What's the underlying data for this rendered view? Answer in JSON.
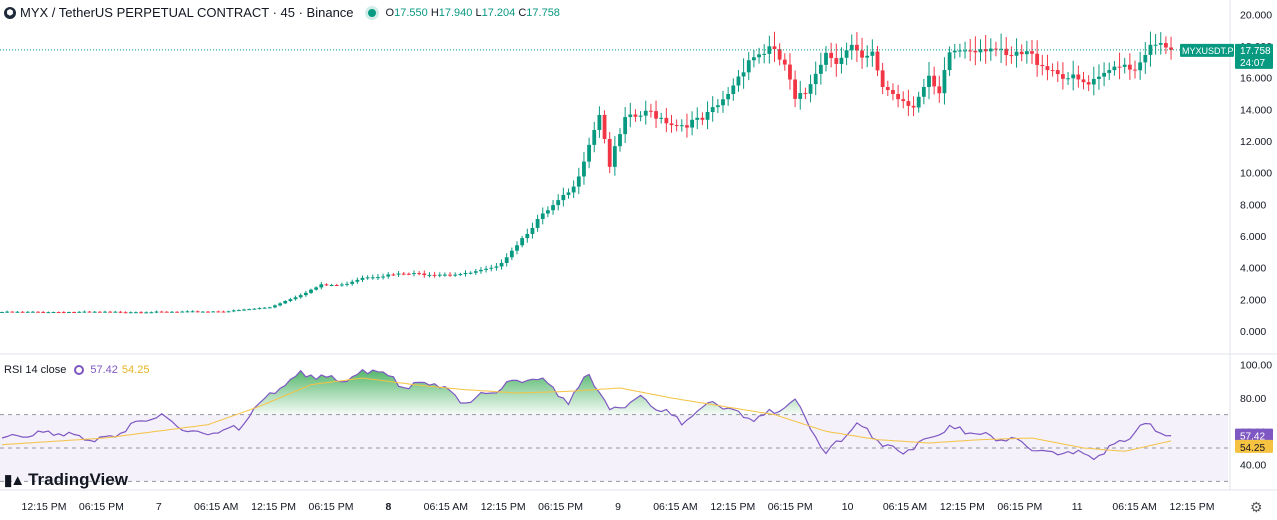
{
  "header": {
    "symbol_title": "MYX / TetherUS PERPETUAL CONTRACT · 45 · Binance",
    "ohlc": {
      "o_label": "O",
      "o": "17.550",
      "h_label": "H",
      "h": "17.940",
      "l_label": "L",
      "l": "17.204",
      "c_label": "C",
      "c": "17.758"
    }
  },
  "price_tag": {
    "symbol": "MYXUSDT.P",
    "price": "17.758",
    "countdown": "24:07"
  },
  "rsi": {
    "label": "RSI 14 close",
    "value": "57.42",
    "ma_value": "54.25"
  },
  "brand": {
    "name": "TradingView"
  },
  "colors": {
    "up": "#089981",
    "down": "#f23645",
    "rsi_line": "#7e57c2",
    "rsi_ma": "#f5c242",
    "rsi_band": "#ede7f6"
  },
  "chart_data": [
    {
      "type": "candlestick",
      "title": "",
      "ylim": [
        -1.2,
        20.4
      ],
      "yticks": [
        0,
        2,
        4,
        6,
        8,
        10,
        12,
        14,
        16,
        18,
        20
      ],
      "ytick_labels": [
        "0.000",
        "2.000",
        "4.000",
        "6.000",
        "8.000",
        "10.000",
        "12.000",
        "14.000",
        "16.000",
        "18.000",
        "20.000"
      ],
      "xticks": [
        "12:15 PM",
        "06:15 PM",
        "7",
        "06:15 AM",
        "12:15 PM",
        "06:15 PM",
        "8",
        "06:15 AM",
        "12:15 PM",
        "06:15 PM",
        "9",
        "06:15 AM",
        "12:15 PM",
        "06:15 PM",
        "10",
        "06:15 AM",
        "12:15 PM",
        "06:15 PM",
        "11",
        "06:15 AM",
        "12:15 PM"
      ],
      "xtick_bold": [
        "8"
      ],
      "last_price": 17.758,
      "anchors": [
        [
          0,
          1.2
        ],
        [
          32,
          1.2
        ],
        [
          44,
          1.25
        ],
        [
          52,
          1.5
        ],
        [
          58,
          2.3
        ],
        [
          62,
          2.9
        ],
        [
          66,
          2.9
        ],
        [
          70,
          3.4
        ],
        [
          78,
          3.6
        ],
        [
          84,
          3.6
        ],
        [
          90,
          3.6
        ],
        [
          96,
          4.0
        ],
        [
          104,
          7.0
        ],
        [
          111,
          9.0
        ],
        [
          116,
          13.8
        ],
        [
          118,
          10.5
        ],
        [
          121,
          13.3
        ],
        [
          126,
          13.8
        ],
        [
          131,
          13.0
        ],
        [
          136,
          13.3
        ],
        [
          140,
          14.5
        ],
        [
          145,
          17.2
        ],
        [
          149,
          17.8
        ],
        [
          152,
          16.8
        ],
        [
          154,
          14.5
        ],
        [
          156,
          15.0
        ],
        [
          158,
          16.5
        ],
        [
          160,
          17.6
        ],
        [
          162,
          17.2
        ],
        [
          165,
          17.9
        ],
        [
          167,
          17.0
        ],
        [
          169,
          17.4
        ],
        [
          171,
          15.5
        ],
        [
          174,
          14.8
        ],
        [
          177,
          14.3
        ],
        [
          180,
          15.8
        ],
        [
          182,
          14.8
        ],
        [
          184,
          17.6
        ],
        [
          188,
          17.9
        ],
        [
          192,
          18.0
        ],
        [
          195,
          17.2
        ],
        [
          199,
          17.5
        ],
        [
          203,
          16.7
        ],
        [
          207,
          16.0
        ],
        [
          211,
          15.5
        ],
        [
          213,
          15.8
        ],
        [
          217,
          17.0
        ],
        [
          220,
          16.6
        ],
        [
          222,
          17.7
        ],
        [
          225,
          18.0
        ],
        [
          227,
          17.76
        ]
      ]
    },
    {
      "type": "line",
      "title": "RSI 14 close",
      "ylim": [
        26,
        104
      ],
      "yticks": [
        40,
        60,
        80,
        100
      ],
      "ytick_labels": [
        "40.00",
        "60.00",
        "80.00",
        "100.00"
      ],
      "bands": [
        30,
        50,
        70
      ],
      "series": [
        {
          "name": "RSI",
          "anchors": [
            [
              0,
              56
            ],
            [
              10,
              59
            ],
            [
              20,
              55
            ],
            [
              30,
              70
            ],
            [
              38,
              58
            ],
            [
              46,
              62
            ],
            [
              52,
              82
            ],
            [
              58,
              95
            ],
            [
              66,
              90
            ],
            [
              72,
              98
            ],
            [
              78,
              87
            ],
            [
              84,
              90
            ],
            [
              90,
              77
            ],
            [
              98,
              88
            ],
            [
              104,
              93
            ],
            [
              110,
              78
            ],
            [
              114,
              95
            ],
            [
              118,
              72
            ],
            [
              124,
              80
            ],
            [
              132,
              66
            ],
            [
              138,
              78
            ],
            [
              142,
              72
            ],
            [
              146,
              67
            ],
            [
              154,
              78
            ],
            [
              160,
              46
            ],
            [
              166,
              65
            ],
            [
              170,
              55
            ],
            [
              174,
              47
            ],
            [
              178,
              52
            ],
            [
              184,
              62
            ],
            [
              190,
              58
            ],
            [
              196,
              55
            ],
            [
              202,
              47
            ],
            [
              208,
              48
            ],
            [
              212,
              44
            ],
            [
              218,
              55
            ],
            [
              222,
              64
            ],
            [
              227,
              57.42
            ]
          ]
        },
        {
          "name": "MA",
          "anchors": [
            [
              0,
              52
            ],
            [
              20,
              56
            ],
            [
              30,
              60
            ],
            [
              40,
              64
            ],
            [
              50,
              75
            ],
            [
              60,
              88
            ],
            [
              70,
              92
            ],
            [
              80,
              88
            ],
            [
              90,
              85
            ],
            [
              100,
              83
            ],
            [
              110,
              84
            ],
            [
              120,
              86
            ],
            [
              130,
              80
            ],
            [
              140,
              75
            ],
            [
              150,
              70
            ],
            [
              160,
              60
            ],
            [
              170,
              55
            ],
            [
              180,
              53
            ],
            [
              190,
              55
            ],
            [
              200,
              56
            ],
            [
              210,
              50
            ],
            [
              218,
              48
            ],
            [
              227,
              54.25
            ]
          ]
        }
      ]
    }
  ]
}
